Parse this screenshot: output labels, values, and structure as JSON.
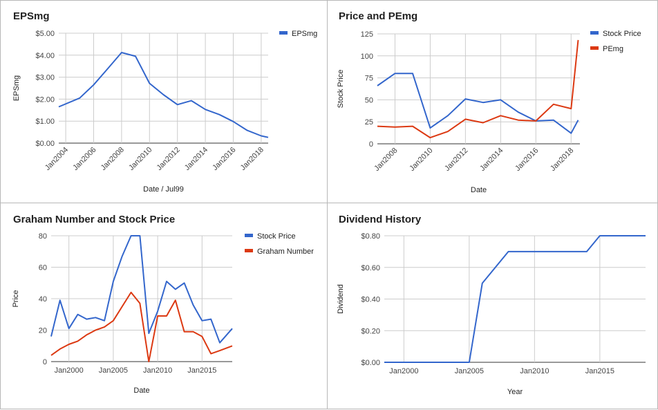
{
  "chart_data": [
    {
      "type": "line",
      "title": "EPSmg",
      "xlabel": "Date / Jul99",
      "ylabel": "EPSmg",
      "x_ticks": [
        "Jan2004",
        "Jan2006",
        "Jan2008",
        "Jan2010",
        "Jan2012",
        "Jan2014",
        "Jan2016",
        "Jan2018"
      ],
      "y_ticks": [
        "$0.00",
        "$1.00",
        "$2.00",
        "$3.00",
        "$4.00",
        "$5.00"
      ],
      "xlim": [
        2003.5,
        2018.5
      ],
      "ylim": [
        0,
        5
      ],
      "legend_position": "top-right",
      "grid": true,
      "series": [
        {
          "name": "EPSmg",
          "color": "#3366cc",
          "x": [
            2003.5,
            2005,
            2006,
            2007,
            2008,
            2009,
            2010,
            2011,
            2012,
            2013,
            2014,
            2015,
            2016,
            2017,
            2018,
            2018.5
          ],
          "y": [
            1.65,
            2.05,
            2.65,
            3.38,
            4.12,
            3.95,
            2.72,
            2.2,
            1.75,
            1.93,
            1.53,
            1.3,
            0.98,
            0.58,
            0.33,
            0.26
          ]
        }
      ]
    },
    {
      "type": "line",
      "title": "Price and PEmg",
      "xlabel": "Date",
      "ylabel": "Stock Price",
      "x_ticks": [
        "Jan2008",
        "Jan2010",
        "Jan2012",
        "Jan2014",
        "Jan2016",
        "Jan2018"
      ],
      "y_ticks": [
        "0",
        "25",
        "50",
        "75",
        "100",
        "125"
      ],
      "xlim": [
        2007,
        2018.5
      ],
      "ylim": [
        0,
        125
      ],
      "legend_position": "top-right",
      "grid": true,
      "series": [
        {
          "name": "Stock Price",
          "color": "#3366cc",
          "x": [
            2007,
            2008,
            2009,
            2010,
            2011,
            2012,
            2013,
            2014,
            2015,
            2016,
            2017,
            2018,
            2018.4
          ],
          "y": [
            66,
            80,
            80,
            18,
            32,
            51,
            47,
            50,
            36,
            26,
            27,
            12,
            27
          ]
        },
        {
          "name": "PEmg",
          "color": "#dc3912",
          "x": [
            2007,
            2008,
            2009,
            2010,
            2011,
            2012,
            2013,
            2014,
            2015,
            2016,
            2017,
            2018,
            2018.4
          ],
          "y": [
            20,
            19,
            20,
            7,
            14,
            28,
            24,
            32,
            27,
            26,
            45,
            40,
            118
          ]
        }
      ]
    },
    {
      "type": "line",
      "title": "Graham Number and Stock Price",
      "xlabel": "Date",
      "ylabel": "Price",
      "x_ticks": [
        "Jan2000",
        "Jan2005",
        "Jan2010",
        "Jan2015"
      ],
      "y_ticks": [
        "0",
        "20",
        "40",
        "60",
        "80"
      ],
      "xlim": [
        1998,
        2018.4
      ],
      "ylim": [
        0,
        80
      ],
      "legend_position": "top-right",
      "grid": true,
      "series": [
        {
          "name": "Stock Price",
          "color": "#3366cc",
          "x": [
            1998,
            1999,
            2000,
            2001,
            2002,
            2003,
            2004,
            2005,
            2006,
            2007,
            2008,
            2009,
            2010,
            2011,
            2012,
            2013,
            2014,
            2015,
            2016,
            2017,
            2018.4
          ],
          "y": [
            16,
            39,
            21,
            30,
            27,
            28,
            26,
            51,
            67,
            80,
            80,
            18,
            32,
            51,
            46,
            50,
            36,
            26,
            27,
            12,
            21
          ]
        },
        {
          "name": "Graham Number",
          "color": "#dc3912",
          "x": [
            1998,
            1999,
            2000,
            2001,
            2002,
            2003,
            2004,
            2005,
            2006,
            2007,
            2008,
            2009,
            2010,
            2011,
            2012,
            2013,
            2014,
            2015,
            2016,
            2017,
            2018.4
          ],
          "y": [
            4,
            8,
            11,
            13,
            17,
            20,
            22,
            26,
            35,
            44,
            37,
            0,
            29,
            29,
            39,
            19,
            19,
            16,
            5,
            7,
            10
          ]
        }
      ]
    },
    {
      "type": "line",
      "title": "Dividend History",
      "xlabel": "Year",
      "ylabel": "Dividend",
      "x_ticks": [
        "Jan2000",
        "Jan2005",
        "Jan2010",
        "Jan2015"
      ],
      "y_ticks": [
        "$0.00",
        "$0.20",
        "$0.40",
        "$0.60",
        "$0.80"
      ],
      "xlim": [
        1998.5,
        2018.5
      ],
      "ylim": [
        0,
        0.8
      ],
      "legend_position": "none",
      "grid": true,
      "series": [
        {
          "name": "",
          "color": "#3366cc",
          "x": [
            1998.5,
            2005,
            2006,
            2008,
            2014,
            2015,
            2018.5
          ],
          "y": [
            0,
            0,
            0.5,
            0.7,
            0.7,
            0.8,
            0.8
          ]
        }
      ]
    }
  ]
}
